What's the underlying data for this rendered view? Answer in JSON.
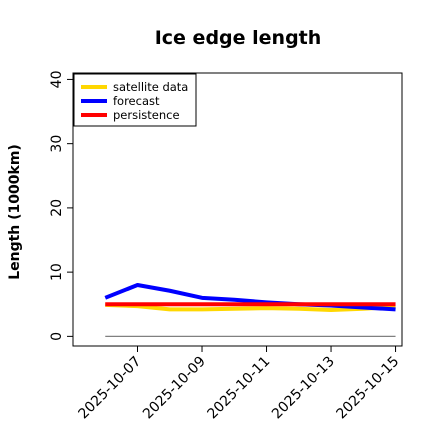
{
  "chart_data": {
    "type": "line",
    "title": "Ice edge length",
    "xlabel": "",
    "ylabel": "Length (1000km)",
    "ylim": [
      -1.5,
      41
    ],
    "xlim": [
      -1.0,
      9.2
    ],
    "x_tick_labels": [
      "2025-10-07",
      "2025-10-09",
      "2025-10-11",
      "2025-10-13",
      "2025-10-15"
    ],
    "x_tick_positions": [
      1,
      3,
      5,
      7,
      9
    ],
    "highlight_tick_index": 0,
    "highlight_tick_color": "#228b22",
    "y_ticks": [
      0,
      10,
      20,
      30,
      40
    ],
    "legend_position": "top-left",
    "x": [
      "2025-10-06",
      "2025-10-07",
      "2025-10-08",
      "2025-10-09",
      "2025-10-10",
      "2025-10-11",
      "2025-10-12",
      "2025-10-13",
      "2025-10-14",
      "2025-10-15"
    ],
    "series": [
      {
        "name": "satellite data",
        "color": "#ffd700",
        "values": [
          4.9,
          4.7,
          4.2,
          4.2,
          4.3,
          4.4,
          4.3,
          4.1,
          4.3,
          4.6
        ]
      },
      {
        "name": "forecast",
        "color": "#0000ff",
        "values": [
          6.0,
          8.0,
          7.1,
          6.0,
          5.7,
          5.3,
          5.0,
          4.8,
          4.5,
          4.2
        ]
      },
      {
        "name": "persistence",
        "color": "#ff0000",
        "values": [
          5.0,
          5.0,
          5.0,
          5.0,
          5.0,
          5.0,
          5.0,
          5.0,
          5.0,
          5.0
        ]
      }
    ],
    "reference_line": {
      "y": 0,
      "x_from": "2025-10-06",
      "x_to": "2025-10-15",
      "color": "#808080"
    }
  }
}
